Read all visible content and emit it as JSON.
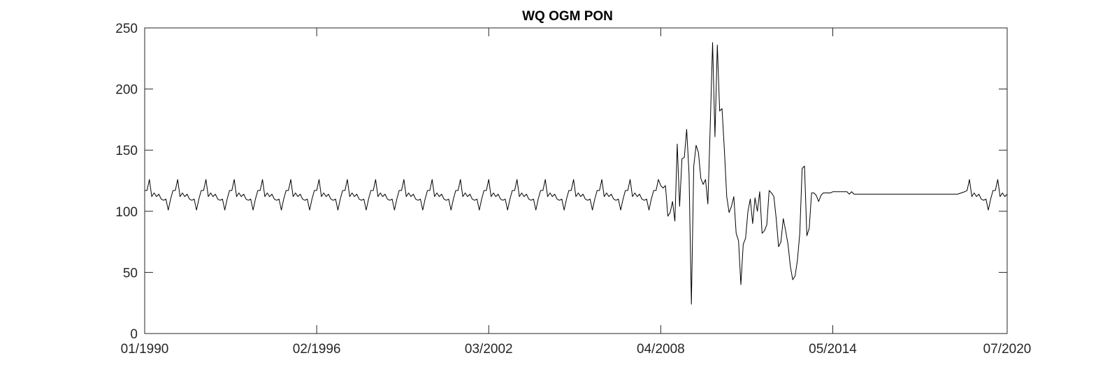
{
  "chart_data": {
    "type": "line",
    "title": "WQ OGM PON",
    "xlabel": "",
    "ylabel": "",
    "xlim": [
      "1990-01",
      "2020-07"
    ],
    "ylim": [
      0,
      250
    ],
    "x_ticks": [
      "1990-01",
      "1996-02",
      "2002-03",
      "2008-04",
      "2014-05",
      "2020-07"
    ],
    "x_tick_labels": [
      "01/1990",
      "02/1996",
      "03/2002",
      "04/2008",
      "05/2014",
      "07/2020"
    ],
    "y_ticks": [
      0,
      50,
      100,
      150,
      200,
      250
    ],
    "y_tick_labels": [
      "0",
      "50",
      "100",
      "150",
      "200",
      "250"
    ],
    "grid": false,
    "box": true,
    "line_color": "#000000",
    "seasonal_pattern": [
      117,
      117,
      126,
      112,
      115,
      112,
      114,
      110,
      109,
      110,
      101,
      110
    ],
    "series": [
      {
        "segments": [
          {
            "start": "1990-01",
            "end": "2008-03",
            "pattern": "seasonal",
            "start_value": 0
          },
          {
            "points": [
              [
                "2008-04",
                121
              ],
              [
                "2008-05",
                119
              ],
              [
                "2008-06",
                121
              ],
              [
                "2008-07",
                96
              ],
              [
                "2008-08",
                99
              ],
              [
                "2008-09",
                108
              ],
              [
                "2008-10",
                92
              ],
              [
                "2008-11",
                155
              ],
              [
                "2008-12",
                104
              ],
              [
                "2009-01",
                143
              ],
              [
                "2009-02",
                144
              ],
              [
                "2009-03",
                167
              ],
              [
                "2009-04",
                131
              ],
              [
                "2009-05",
                24
              ],
              [
                "2009-06",
                137
              ],
              [
                "2009-07",
                154
              ],
              [
                "2009-08",
                148
              ],
              [
                "2009-09",
                127
              ],
              [
                "2009-10",
                122
              ],
              [
                "2009-11",
                126
              ],
              [
                "2009-12",
                106
              ],
              [
                "2010-01",
                170
              ],
              [
                "2010-02",
                238
              ],
              [
                "2010-03",
                161
              ],
              [
                "2010-04",
                236
              ],
              [
                "2010-05",
                182
              ],
              [
                "2010-06",
                184
              ],
              [
                "2010-07",
                150
              ],
              [
                "2010-08",
                112
              ],
              [
                "2010-09",
                99
              ],
              [
                "2010-10",
                104
              ],
              [
                "2010-11",
                112
              ],
              [
                "2010-12",
                82
              ],
              [
                "2011-01",
                76
              ],
              [
                "2011-02",
                40
              ],
              [
                "2011-03",
                73
              ],
              [
                "2011-04",
                78
              ],
              [
                "2011-05",
                100
              ],
              [
                "2011-06",
                110
              ],
              [
                "2011-07",
                90
              ],
              [
                "2011-08",
                111
              ],
              [
                "2011-09",
                100
              ],
              [
                "2011-10",
                116
              ],
              [
                "2011-11",
                82
              ],
              [
                "2011-12",
                84
              ],
              [
                "2012-01",
                89
              ],
              [
                "2012-02",
                117
              ],
              [
                "2012-03",
                115
              ],
              [
                "2012-04",
                112
              ],
              [
                "2012-05",
                94
              ],
              [
                "2012-06",
                71
              ],
              [
                "2012-07",
                75
              ],
              [
                "2012-08",
                94
              ],
              [
                "2012-09",
                84
              ],
              [
                "2012-10",
                73
              ],
              [
                "2012-11",
                55
              ],
              [
                "2012-12",
                44
              ],
              [
                "2013-01",
                47
              ],
              [
                "2013-02",
                60
              ],
              [
                "2013-03",
                82
              ],
              [
                "2013-04",
                135
              ],
              [
                "2013-05",
                137
              ],
              [
                "2013-06",
                80
              ],
              [
                "2013-07",
                86
              ],
              [
                "2013-08",
                115
              ],
              [
                "2013-09",
                115
              ],
              [
                "2013-10",
                113
              ],
              [
                "2013-11",
                108
              ],
              [
                "2013-12",
                113
              ],
              [
                "2014-01",
                115
              ],
              [
                "2014-02",
                115
              ],
              [
                "2014-03",
                115
              ],
              [
                "2014-04",
                115
              ],
              [
                "2014-05",
                116
              ],
              [
                "2014-06",
                116
              ],
              [
                "2014-07",
                116
              ],
              [
                "2014-08",
                116
              ],
              [
                "2014-09",
                116
              ],
              [
                "2014-10",
                116
              ],
              [
                "2014-11",
                116
              ],
              [
                "2014-12",
                114
              ],
              [
                "2015-01",
                116
              ],
              [
                "2015-02",
                114
              ],
              [
                "2018-10",
                114
              ],
              [
                "2019-01",
                116
              ],
              [
                "2019-02",
                117
              ]
            ]
          },
          {
            "start": "2019-03",
            "end": "2020-07",
            "pattern": "seasonal"
          }
        ]
      }
    ]
  }
}
